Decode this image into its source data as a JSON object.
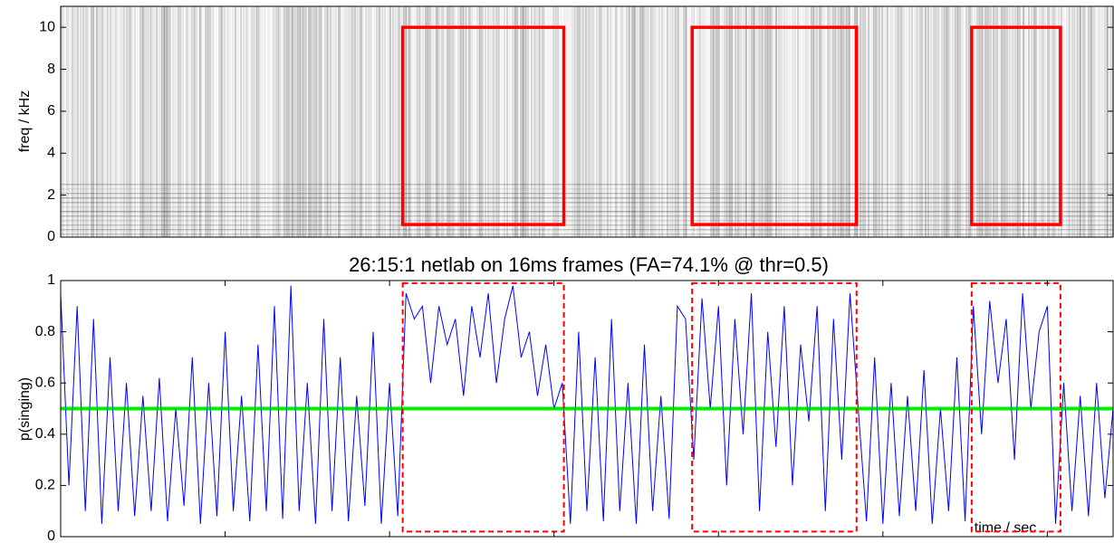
{
  "chart_data": [
    {
      "type": "spectrogram",
      "ylabel": "freq / kHz",
      "xlim": [
        0,
        32
      ],
      "ylim": [
        0,
        11
      ],
      "yticks": [
        0,
        2,
        4,
        6,
        8,
        10
      ],
      "regions": [
        {
          "x": [
            10.4,
            15.3
          ],
          "y": [
            0.6,
            10
          ]
        },
        {
          "x": [
            19.2,
            24.2
          ],
          "y": [
            0.6,
            10
          ]
        },
        {
          "x": [
            27.7,
            30.4
          ],
          "y": [
            0.6,
            10
          ]
        }
      ],
      "region_color": "#ff0000"
    },
    {
      "type": "line",
      "title": "26:15:1 netlab on 16ms frames (FA=74.1% @ thr=0.5)",
      "ylabel": "p(singing)",
      "xlabel": "time / sec",
      "xlim": [
        0,
        32
      ],
      "ylim": [
        0,
        1
      ],
      "xticks": [
        0,
        5,
        10,
        15,
        20,
        25,
        30
      ],
      "yticks": [
        0,
        0.2,
        0.4,
        0.6,
        0.8,
        1
      ],
      "color": "#0000ff",
      "threshold": 0.5,
      "threshold_color": "#00ee00",
      "region_color": "#ff0000",
      "regions": [
        {
          "x": [
            10.4,
            15.3
          ],
          "y": [
            0.02,
            0.99
          ]
        },
        {
          "x": [
            19.2,
            24.2
          ],
          "y": [
            0.02,
            0.99
          ]
        },
        {
          "x": [
            27.7,
            30.4
          ],
          "y": [
            0.02,
            0.99
          ]
        }
      ],
      "x": [
        0,
        0.25,
        0.5,
        0.75,
        1,
        1.25,
        1.5,
        1.75,
        2,
        2.25,
        2.5,
        2.75,
        3,
        3.25,
        3.5,
        3.75,
        4,
        4.25,
        4.5,
        4.75,
        5,
        5.25,
        5.5,
        5.75,
        6,
        6.25,
        6.5,
        6.75,
        7,
        7.25,
        7.5,
        7.75,
        8,
        8.25,
        8.5,
        8.75,
        9,
        9.25,
        9.5,
        9.75,
        10,
        10.25,
        10.5,
        10.75,
        11,
        11.25,
        11.5,
        11.75,
        12,
        12.25,
        12.5,
        12.75,
        13,
        13.25,
        13.5,
        13.75,
        14,
        14.25,
        14.5,
        14.75,
        15,
        15.25,
        15.5,
        15.75,
        16,
        16.25,
        16.5,
        16.75,
        17,
        17.25,
        17.5,
        17.75,
        18,
        18.25,
        18.5,
        18.75,
        19,
        19.25,
        19.5,
        19.75,
        20,
        20.25,
        20.5,
        20.75,
        21,
        21.25,
        21.5,
        21.75,
        22,
        22.25,
        22.5,
        22.75,
        23,
        23.25,
        23.5,
        23.75,
        24,
        24.25,
        24.5,
        24.75,
        25,
        25.25,
        25.5,
        25.75,
        26,
        26.25,
        26.5,
        26.75,
        27,
        27.25,
        27.5,
        27.75,
        28,
        28.25,
        28.5,
        28.75,
        29,
        29.25,
        29.5,
        29.75,
        30,
        30.25,
        30.5,
        30.75,
        31,
        31.25,
        31.5,
        31.75,
        32
      ],
      "values": [
        0.95,
        0.2,
        0.9,
        0.1,
        0.85,
        0.05,
        0.7,
        0.1,
        0.6,
        0.08,
        0.55,
        0.1,
        0.62,
        0.06,
        0.5,
        0.12,
        0.7,
        0.05,
        0.6,
        0.08,
        0.8,
        0.1,
        0.55,
        0.06,
        0.75,
        0.1,
        0.9,
        0.07,
        0.98,
        0.1,
        0.6,
        0.05,
        0.85,
        0.1,
        0.7,
        0.06,
        0.55,
        0.12,
        0.8,
        0.05,
        0.6,
        0.08,
        0.95,
        0.85,
        0.9,
        0.6,
        0.9,
        0.75,
        0.85,
        0.55,
        0.9,
        0.7,
        0.95,
        0.6,
        0.85,
        0.98,
        0.7,
        0.8,
        0.55,
        0.75,
        0.5,
        0.6,
        0.05,
        0.8,
        0.1,
        0.7,
        0.06,
        0.85,
        0.1,
        0.6,
        0.05,
        0.75,
        0.1,
        0.55,
        0.07,
        0.9,
        0.85,
        0.3,
        0.93,
        0.5,
        0.9,
        0.2,
        0.85,
        0.4,
        0.95,
        0.1,
        0.8,
        0.35,
        0.9,
        0.2,
        0.75,
        0.45,
        0.9,
        0.1,
        0.85,
        0.3,
        0.95,
        0.5,
        0.06,
        0.7,
        0.05,
        0.6,
        0.08,
        0.55,
        0.1,
        0.65,
        0.05,
        0.5,
        0.1,
        0.7,
        0.06,
        0.9,
        0.4,
        0.92,
        0.6,
        0.85,
        0.3,
        0.95,
        0.5,
        0.8,
        0.9,
        0.05,
        0.6,
        0.1,
        0.55,
        0.08,
        0.6,
        0.15,
        0.5
      ]
    }
  ]
}
